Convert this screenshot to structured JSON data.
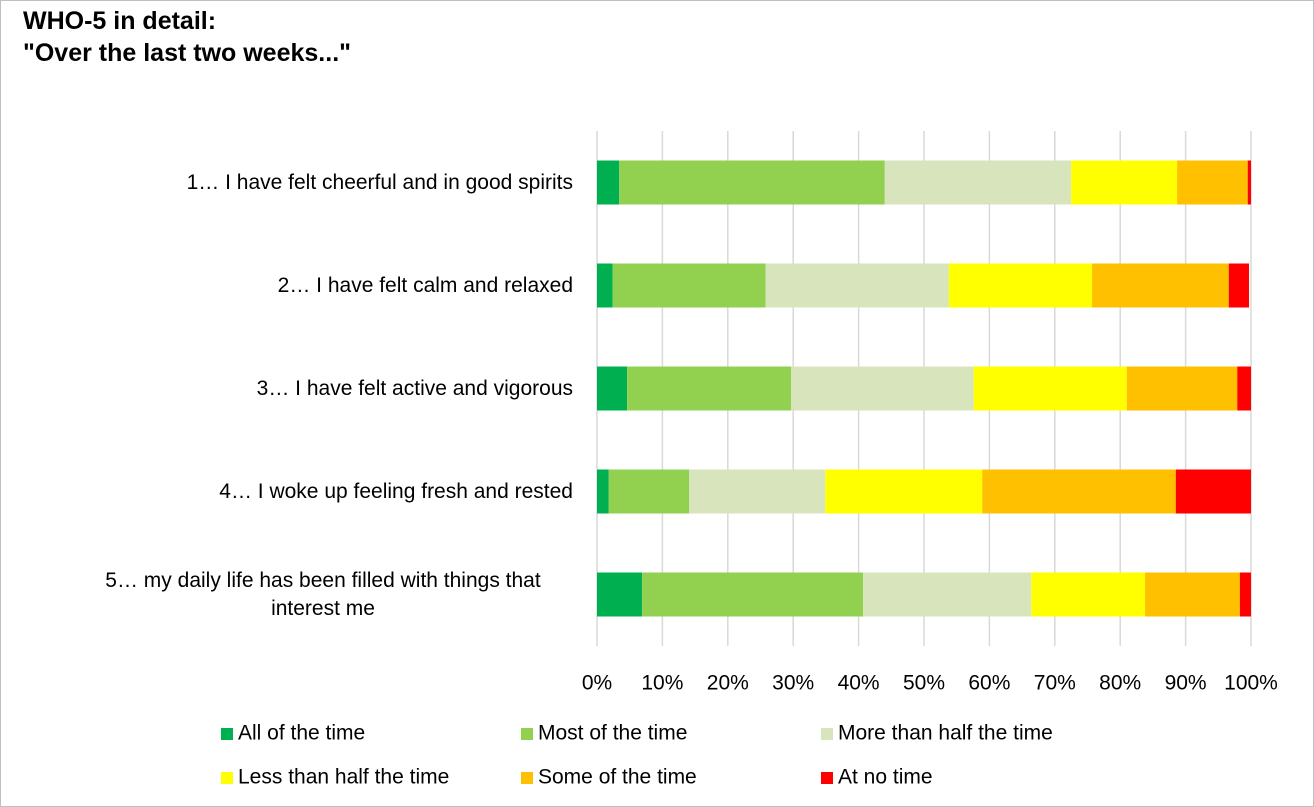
{
  "chart_data": {
    "type": "stacked_barh",
    "title": "WHO-5 in detail:",
    "subtitle": "\"Over the last two weeks...\"",
    "categories": [
      "1… I have felt cheerful and in good spirits",
      "2… I have felt calm and relaxed",
      "3… I have felt active and vigorous",
      "4… I woke up feeling fresh and rested",
      "5… my daily life has been filled with things that interest me"
    ],
    "series": [
      {
        "name": "All of the time",
        "color": "#00b050",
        "values": [
          3.4,
          2.4,
          4.6,
          1.8,
          6.9
        ]
      },
      {
        "name": "Most of the time",
        "color": "#92d050",
        "values": [
          40.6,
          23.4,
          25.1,
          12.3,
          33.8
        ]
      },
      {
        "name": "More than half the time",
        "color": "#d8e4bc",
        "values": [
          28.5,
          28.0,
          27.9,
          20.8,
          25.7
        ]
      },
      {
        "name": "Less than half the time",
        "color": "#ffff00",
        "values": [
          16.2,
          21.9,
          23.4,
          24.0,
          17.4
        ]
      },
      {
        "name": "Some of the time",
        "color": "#ffc000",
        "values": [
          10.8,
          20.9,
          16.9,
          29.6,
          14.5
        ]
      },
      {
        "name": "At no time",
        "color": "#ff0000",
        "values": [
          0.5,
          3.1,
          2.1,
          11.5,
          1.7
        ]
      }
    ],
    "xlim": [
      0,
      100
    ],
    "xticks": [
      {
        "value": 0,
        "label": "0%"
      },
      {
        "value": 10,
        "label": "10%"
      },
      {
        "value": 20,
        "label": "20%"
      },
      {
        "value": 30,
        "label": "30%"
      },
      {
        "value": 40,
        "label": "40%"
      },
      {
        "value": 50,
        "label": "50%"
      },
      {
        "value": 60,
        "label": "60%"
      },
      {
        "value": 70,
        "label": "70%"
      },
      {
        "value": 80,
        "label": "80%"
      },
      {
        "value": 90,
        "label": "90%"
      },
      {
        "value": 100,
        "label": "100%"
      }
    ],
    "grid": true
  }
}
